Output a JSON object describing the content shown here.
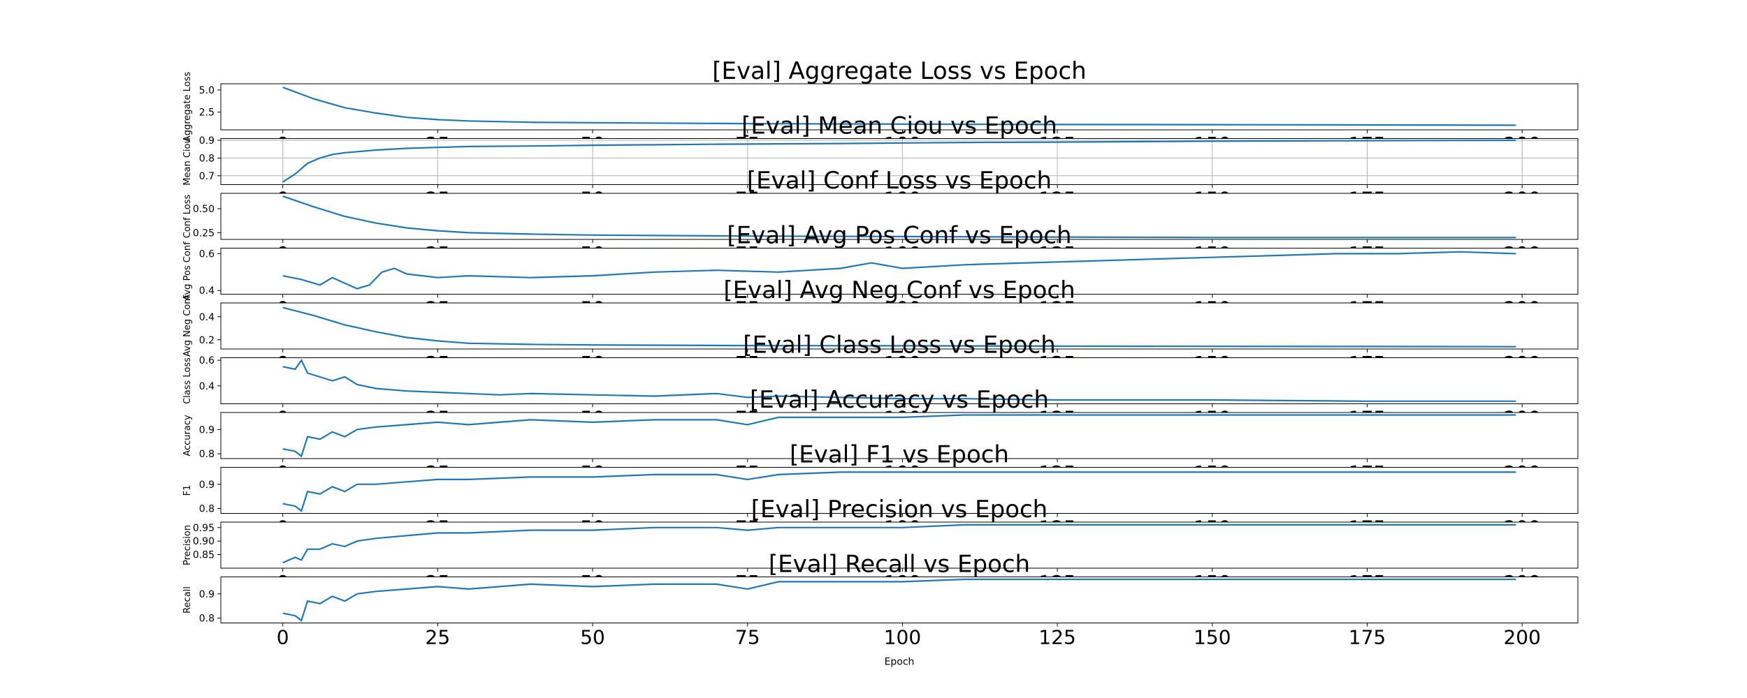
{
  "chart_data": {
    "type": "line",
    "xlabel": "Epoch",
    "xlim": [
      -10,
      209
    ],
    "xticks": [
      0,
      25,
      50,
      75,
      100,
      125,
      150,
      175,
      200
    ],
    "line_color": "#1f77b4",
    "subplots": [
      {
        "title": "[Eval] Aggregate Loss vs Epoch",
        "ylabel": "Aggregate Loss",
        "ylim": [
          0.5,
          5.7
        ],
        "yticks": [
          "5.0",
          "2.5"
        ],
        "grid": false,
        "series": [
          {
            "x": [
              0,
              5,
              10,
              15,
              20,
              25,
              30,
              40,
              50,
              75,
              100,
              125,
              150,
              175,
              199
            ],
            "y": [
              5.3,
              4.0,
              3.0,
              2.4,
              1.9,
              1.65,
              1.5,
              1.35,
              1.3,
              1.2,
              1.15,
              1.1,
              1.08,
              1.05,
              1.02
            ]
          }
        ]
      },
      {
        "title": "[Eval] Mean Ciou vs Epoch",
        "ylabel": "Mean Ciou",
        "ylim": [
          0.65,
          0.91
        ],
        "yticks": [
          "0.9",
          "0.8",
          "0.7"
        ],
        "grid": true,
        "series": [
          {
            "x": [
              0,
              2,
              4,
              6,
              8,
              10,
              15,
              20,
              25,
              30,
              40,
              50,
              60,
              70,
              80,
              90,
              100,
              110,
              125,
              150,
              175,
              199
            ],
            "y": [
              0.665,
              0.71,
              0.77,
              0.8,
              0.82,
              0.83,
              0.845,
              0.855,
              0.86,
              0.865,
              0.868,
              0.872,
              0.875,
              0.878,
              0.88,
              0.882,
              0.885,
              0.888,
              0.89,
              0.895,
              0.898,
              0.9
            ]
          }
        ]
      },
      {
        "title": "[Eval] Conf Loss vs Epoch",
        "ylabel": "Conf Loss",
        "ylim": [
          0.18,
          0.66
        ],
        "yticks": [
          "0.50",
          "0.25"
        ],
        "grid": false,
        "series": [
          {
            "x": [
              0,
              5,
              10,
              15,
              20,
              25,
              30,
              40,
              50,
              75,
              100,
              125,
              150,
              175,
              199
            ],
            "y": [
              0.63,
              0.52,
              0.42,
              0.35,
              0.3,
              0.27,
              0.25,
              0.235,
              0.225,
              0.215,
              0.21,
              0.205,
              0.2,
              0.2,
              0.2
            ]
          }
        ]
      },
      {
        "title": "[Eval] Avg Pos Conf vs Epoch",
        "ylabel": "Avg Pos Conf",
        "ylim": [
          0.38,
          0.63
        ],
        "yticks": [
          "0.6",
          "0.4"
        ],
        "grid": false,
        "series": [
          {
            "x": [
              0,
              3,
              6,
              8,
              10,
              12,
              14,
              16,
              18,
              20,
              25,
              30,
              40,
              50,
              60,
              70,
              80,
              90,
              95,
              100,
              110,
              120,
              130,
              140,
              150,
              160,
              170,
              180,
              190,
              199
            ],
            "y": [
              0.48,
              0.46,
              0.43,
              0.47,
              0.44,
              0.41,
              0.43,
              0.5,
              0.52,
              0.49,
              0.47,
              0.48,
              0.47,
              0.48,
              0.5,
              0.51,
              0.5,
              0.52,
              0.55,
              0.52,
              0.54,
              0.55,
              0.56,
              0.57,
              0.58,
              0.59,
              0.6,
              0.6,
              0.61,
              0.6
            ]
          }
        ]
      },
      {
        "title": "[Eval] Avg Neg Conf vs Epoch",
        "ylabel": "Avg Neg Conf",
        "ylim": [
          0.12,
          0.52
        ],
        "yticks": [
          "0.4",
          "0.2"
        ],
        "grid": false,
        "series": [
          {
            "x": [
              0,
              5,
              10,
              15,
              20,
              25,
              30,
              40,
              50,
              75,
              100,
              125,
              150,
              175,
              199
            ],
            "y": [
              0.48,
              0.41,
              0.33,
              0.27,
              0.22,
              0.19,
              0.17,
              0.16,
              0.155,
              0.15,
              0.148,
              0.145,
              0.143,
              0.142,
              0.14
            ]
          }
        ]
      },
      {
        "title": "[Eval] Class Loss vs Epoch",
        "ylabel": "Class Loss",
        "ylim": [
          0.26,
          0.62
        ],
        "yticks": [
          "0.6",
          "0.4"
        ],
        "grid": false,
        "series": [
          {
            "x": [
              0,
              2,
              3,
              4,
              6,
              8,
              10,
              12,
              15,
              20,
              25,
              30,
              35,
              40,
              50,
              60,
              70,
              75,
              80,
              90,
              100,
              110,
              125,
              150,
              175,
              199
            ],
            "y": [
              0.55,
              0.53,
              0.6,
              0.5,
              0.47,
              0.44,
              0.47,
              0.41,
              0.38,
              0.36,
              0.35,
              0.34,
              0.33,
              0.34,
              0.33,
              0.32,
              0.34,
              0.31,
              0.32,
              0.31,
              0.3,
              0.3,
              0.29,
              0.29,
              0.28,
              0.28
            ]
          }
        ]
      },
      {
        "title": "[Eval] Accuracy vs Epoch",
        "ylabel": "Accuracy",
        "ylim": [
          0.78,
          0.97
        ],
        "yticks": [
          "0.9",
          "0.8"
        ],
        "grid": false,
        "series": [
          {
            "x": [
              0,
              2,
              3,
              4,
              6,
              8,
              10,
              12,
              15,
              20,
              25,
              30,
              40,
              50,
              60,
              70,
              75,
              80,
              90,
              100,
              110,
              125,
              150,
              175,
              199
            ],
            "y": [
              0.82,
              0.81,
              0.79,
              0.87,
              0.86,
              0.89,
              0.87,
              0.9,
              0.91,
              0.92,
              0.93,
              0.92,
              0.94,
              0.93,
              0.94,
              0.94,
              0.92,
              0.95,
              0.95,
              0.95,
              0.96,
              0.96,
              0.96,
              0.96,
              0.96
            ]
          }
        ]
      },
      {
        "title": "[Eval] F1 vs Epoch",
        "ylabel": "F1",
        "ylim": [
          0.78,
          0.97
        ],
        "yticks": [
          "0.9",
          "0.8"
        ],
        "grid": false,
        "series": [
          {
            "x": [
              0,
              2,
              3,
              4,
              6,
              8,
              10,
              12,
              15,
              20,
              25,
              30,
              40,
              50,
              60,
              70,
              75,
              80,
              90,
              100,
              110,
              125,
              150,
              175,
              199
            ],
            "y": [
              0.82,
              0.81,
              0.79,
              0.87,
              0.86,
              0.89,
              0.87,
              0.9,
              0.9,
              0.91,
              0.92,
              0.92,
              0.93,
              0.93,
              0.94,
              0.94,
              0.92,
              0.94,
              0.95,
              0.95,
              0.95,
              0.95,
              0.95,
              0.95,
              0.95
            ]
          }
        ]
      },
      {
        "title": "[Eval] Precision vs Epoch",
        "ylabel": "Precision",
        "ylim": [
          0.8,
          0.97
        ],
        "yticks": [
          "0.95",
          "0.90",
          "0.85"
        ],
        "grid": false,
        "series": [
          {
            "x": [
              0,
              2,
              3,
              4,
              6,
              8,
              10,
              12,
              15,
              20,
              25,
              30,
              40,
              50,
              60,
              70,
              75,
              80,
              90,
              100,
              110,
              125,
              150,
              175,
              199
            ],
            "y": [
              0.82,
              0.84,
              0.83,
              0.87,
              0.87,
              0.89,
              0.88,
              0.9,
              0.91,
              0.92,
              0.93,
              0.93,
              0.94,
              0.94,
              0.95,
              0.95,
              0.94,
              0.95,
              0.95,
              0.95,
              0.96,
              0.96,
              0.96,
              0.96,
              0.96
            ]
          }
        ]
      },
      {
        "title": "[Eval] Recall vs Epoch",
        "ylabel": "Recall",
        "ylim": [
          0.78,
          0.97
        ],
        "yticks": [
          "0.9",
          "0.8"
        ],
        "grid": false,
        "series": [
          {
            "x": [
              0,
              2,
              3,
              4,
              6,
              8,
              10,
              12,
              15,
              20,
              25,
              30,
              40,
              50,
              60,
              70,
              75,
              80,
              90,
              100,
              110,
              125,
              150,
              175,
              199
            ],
            "y": [
              0.82,
              0.81,
              0.79,
              0.87,
              0.86,
              0.89,
              0.87,
              0.9,
              0.91,
              0.92,
              0.93,
              0.92,
              0.94,
              0.93,
              0.94,
              0.94,
              0.92,
              0.95,
              0.95,
              0.95,
              0.96,
              0.96,
              0.96,
              0.96,
              0.96
            ]
          }
        ]
      }
    ]
  }
}
